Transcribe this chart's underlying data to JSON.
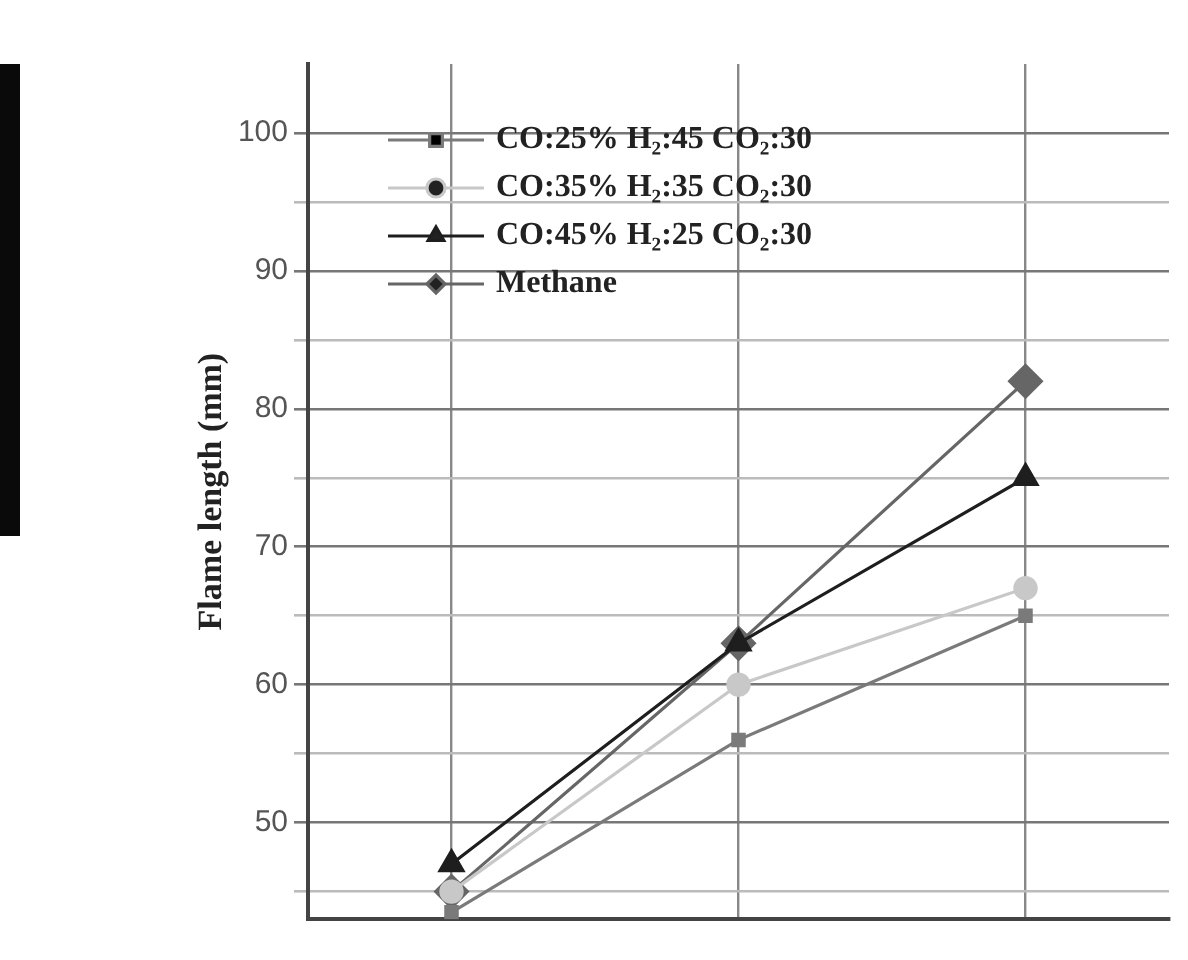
{
  "chart_data": {
    "type": "line",
    "ylabel": "Flame length (mm)",
    "categories": [
      null,
      null,
      null
    ],
    "series": [
      {
        "name": "CO:25% H₂:45 CO₂:30",
        "color": "#7a7a7a",
        "marker": "square",
        "values": [
          43.5,
          56,
          65
        ]
      },
      {
        "name": "CO:35% H₂:35 CO₂:30",
        "color": "#c8c8c8",
        "marker": "circle",
        "values": [
          45,
          60,
          67
        ]
      },
      {
        "name": "CO:45% H₂:25 CO₂:30",
        "color": "#1e1e1e",
        "marker": "triangle",
        "values": [
          47,
          63,
          75
        ]
      },
      {
        "name": "Methane",
        "color": "#666666",
        "marker": "diamond",
        "values": [
          45,
          63,
          82
        ]
      }
    ],
    "ylim": [
      43,
      105
    ],
    "yticks": [
      {
        "value": 45,
        "label": null
      },
      50,
      {
        "value": 55,
        "label": null
      },
      60,
      {
        "value": 65,
        "label": null
      },
      70,
      {
        "value": 75,
        "label": null
      },
      80,
      {
        "value": 85,
        "label": null
      },
      90,
      {
        "value": 95,
        "label": null
      },
      100
    ],
    "grid": true,
    "legend": "top left",
    "line_style": "solid"
  }
}
